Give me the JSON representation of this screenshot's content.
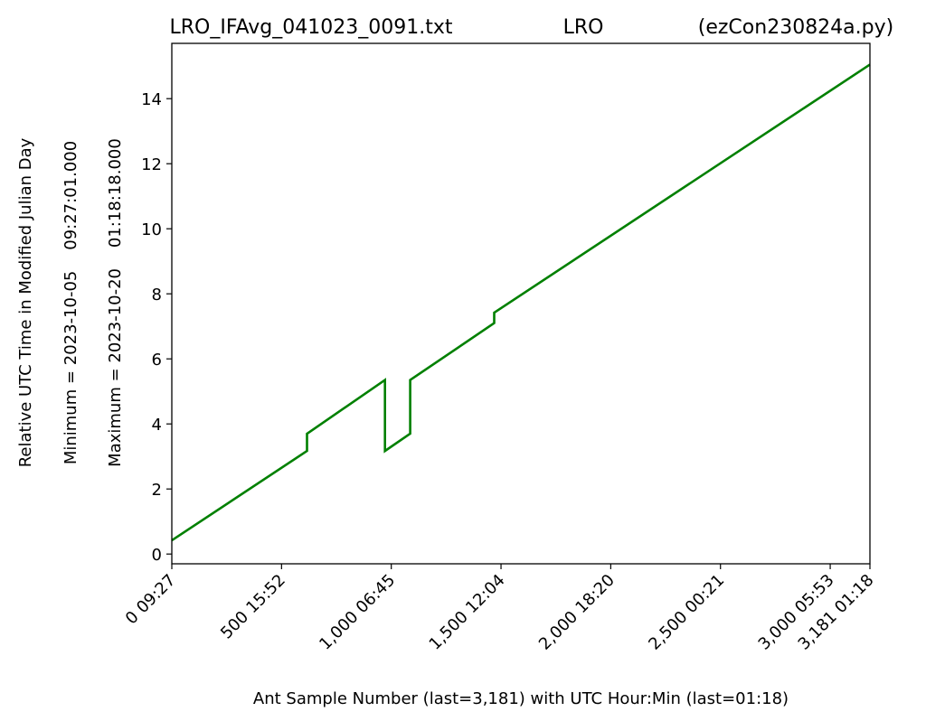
{
  "chart_data": {
    "type": "line",
    "title_left": "LRO_IFAvg_041023_0091.txt",
    "title_center": "LRO",
    "title_right": "(ezCon230824a.py)",
    "xlabel": "Ant Sample Number (last=3,181) with UTC Hour:Min (last=01:18)",
    "ylabel_lines": [
      "Relative UTC Time in Modified Julian Day",
      "Minimum = 2023-10-05    09:27:01.000",
      "Maximum = 2023-10-20    01:18:18.000"
    ],
    "xlim": [
      0,
      3181
    ],
    "ylim": [
      -0.3,
      15.7
    ],
    "xticks": [
      {
        "value": 0,
        "label": "0  09:27"
      },
      {
        "value": 500,
        "label": "500  15:52"
      },
      {
        "value": 1000,
        "label": "1,000  06:45"
      },
      {
        "value": 1500,
        "label": "1,500  12:04"
      },
      {
        "value": 2000,
        "label": "2,000  18:20"
      },
      {
        "value": 2500,
        "label": "2,500  00:21"
      },
      {
        "value": 3000,
        "label": "3,000  05:53"
      },
      {
        "value": 3181,
        "label": "3,181  01:18"
      }
    ],
    "yticks": [
      0,
      2,
      4,
      6,
      8,
      10,
      12,
      14
    ],
    "series": [
      {
        "color": "#008000",
        "points": [
          [
            0,
            0.42
          ],
          [
            616,
            3.17
          ],
          [
            616,
            3.7
          ],
          [
            971,
            5.35
          ],
          [
            971,
            3.17
          ],
          [
            1086,
            3.7
          ],
          [
            1086,
            5.35
          ],
          [
            1469,
            7.1
          ],
          [
            1469,
            7.42
          ],
          [
            3181,
            15.05
          ]
        ]
      }
    ]
  }
}
